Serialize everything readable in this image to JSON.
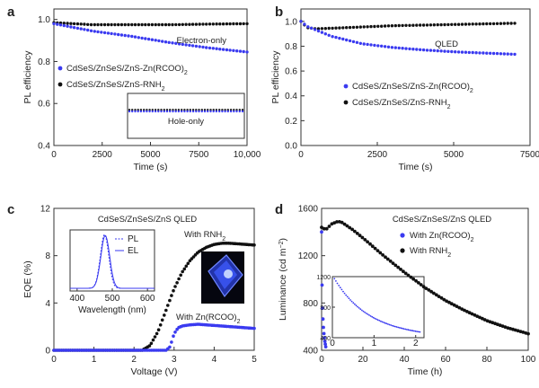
{
  "chart_data": [
    {
      "panel": "a",
      "type": "scatter",
      "xlabel": "Time (s)",
      "ylabel": "PL efficiency",
      "xlim": [
        0,
        10000
      ],
      "ylim": [
        0.4,
        1.05
      ],
      "xticks": [
        "0",
        "2500",
        "5000",
        "7500",
        "10,000"
      ],
      "yticks": [
        "0.4",
        "0.6",
        "0.8",
        "1.0"
      ],
      "annotations": [
        "Electron-only",
        "Hole-only"
      ],
      "legend_position": "middle-left",
      "series": [
        {
          "name": "CdSeS/ZnSeS/ZnS-Zn(RCOO)2",
          "color": "#3a3af0",
          "x": [
            0,
            2000,
            4000,
            6000,
            8000,
            10000
          ],
          "y": [
            0.98,
            0.945,
            0.92,
            0.89,
            0.865,
            0.845
          ]
        },
        {
          "name": "CdSeS/ZnSeS/ZnS-RNH2",
          "color": "#111111",
          "x": [
            0,
            2000,
            4000,
            6000,
            8000,
            10000
          ],
          "y": [
            0.985,
            0.975,
            0.975,
            0.975,
            0.978,
            0.98
          ]
        }
      ],
      "inset": {
        "label": "Hole-only",
        "series": [
          {
            "name": "CdSeS/ZnSeS/ZnS-Zn(RCOO)2",
            "color": "#3a3af0",
            "y": [
              0.99,
              0.99
            ]
          },
          {
            "name": "CdSeS/ZnSeS/ZnS-RNH2",
            "color": "#111111",
            "y": [
              0.995,
              0.995
            ]
          }
        ]
      }
    },
    {
      "panel": "b",
      "type": "scatter",
      "xlabel": "Time (s)",
      "ylabel": "PL efficiency",
      "xlim": [
        0,
        7500
      ],
      "ylim": [
        0,
        1.1
      ],
      "xticks": [
        "0",
        "2500",
        "5000",
        "7500"
      ],
      "yticks": [
        "0.0",
        "0.2",
        "0.4",
        "0.6",
        "0.8",
        "1.0"
      ],
      "annotations": [
        "QLED"
      ],
      "legend_position": "lower-left",
      "series": [
        {
          "name": "CdSeS/ZnSeS/ZnS-Zn(RCOO)2",
          "color": "#3a3af0",
          "x": [
            0,
            200,
            500,
            1000,
            2000,
            3000,
            4000,
            5000,
            6000,
            7000
          ],
          "y": [
            1.0,
            0.96,
            0.93,
            0.88,
            0.82,
            0.79,
            0.77,
            0.755,
            0.745,
            0.735
          ]
        },
        {
          "name": "CdSeS/ZnSeS/ZnS-RNH2",
          "color": "#111111",
          "x": [
            0,
            200,
            500,
            1000,
            2000,
            3000,
            4000,
            5000,
            6000,
            7000
          ],
          "y": [
            1.0,
            0.95,
            0.94,
            0.945,
            0.955,
            0.965,
            0.97,
            0.975,
            0.98,
            0.985
          ]
        }
      ]
    },
    {
      "panel": "c",
      "type": "line",
      "title": "CdSeS/ZnSeS/ZnS QLED",
      "xlabel": "Voltage (V)",
      "ylabel": "EQE (%)",
      "xlim": [
        0,
        5
      ],
      "ylim": [
        0,
        12
      ],
      "xticks": [
        "0",
        "1",
        "2",
        "3",
        "4",
        "5"
      ],
      "yticks": [
        "0",
        "4",
        "8",
        "12"
      ],
      "series": [
        {
          "name": "With RNH2",
          "label": "With RNH",
          "label_sub": "2",
          "color": "#111111",
          "x": [
            0,
            2.2,
            2.4,
            2.6,
            2.8,
            3.0,
            3.2,
            3.4,
            3.6,
            3.8,
            4.0,
            4.2,
            4.4,
            4.6,
            4.8,
            5.0
          ],
          "y": [
            0,
            0,
            0.4,
            1.6,
            3.4,
            5.2,
            6.6,
            7.6,
            8.3,
            8.7,
            8.95,
            9.05,
            9.05,
            9.0,
            8.95,
            8.9
          ]
        },
        {
          "name": "With Zn(RCOO)2",
          "label": "With Zn(RCOO)",
          "label_sub": "2",
          "color": "#3a3af0",
          "x": [
            0,
            2.8,
            2.9,
            3.0,
            3.1,
            3.2,
            3.4,
            3.6,
            3.8,
            4.0,
            4.2,
            4.4,
            4.6,
            4.8,
            5.0
          ],
          "y": [
            0,
            0,
            0.3,
            1.4,
            1.9,
            2.05,
            2.15,
            2.2,
            2.15,
            2.1,
            2.05,
            2.0,
            1.95,
            1.9,
            1.85
          ]
        }
      ],
      "inset": {
        "xlabel": "Wavelength (nm)",
        "xlim": [
          380,
          620
        ],
        "xticks": [
          "400",
          "500",
          "600"
        ],
        "legend": [
          "PL",
          "EL"
        ],
        "peak_nm": 478,
        "fwhm_nm": 28
      }
    },
    {
      "panel": "d",
      "type": "scatter",
      "title": "CdSeS/ZnSeS/ZnS QLED",
      "xlabel": "Time (h)",
      "ylabel": "Luminance (cd m",
      "ylabel_sup": "−2",
      "ylabel_end": ")",
      "xlim": [
        0,
        100
      ],
      "ylim": [
        400,
        1600
      ],
      "xticks": [
        "0",
        "20",
        "40",
        "60",
        "80",
        "100"
      ],
      "yticks": [
        "400",
        "800",
        "1200",
        "1600"
      ],
      "series": [
        {
          "name": "With Zn(RCOO)2",
          "label": "With Zn(RCOO)",
          "label_sub": "2",
          "color": "#3a3af0",
          "x": [
            0,
            0.1,
            0.2,
            0.3,
            0.5,
            0.8,
            1.0,
            1.3,
            1.6,
            2.0
          ],
          "y": [
            1400,
            1150,
            980,
            850,
            720,
            620,
            560,
            510,
            470,
            430
          ]
        },
        {
          "name": "With RNH2",
          "label": "With RNH",
          "label_sub": "2",
          "color": "#111111",
          "x": [
            0,
            2,
            5,
            8,
            10,
            15,
            20,
            30,
            40,
            50,
            60,
            70,
            80,
            90,
            100
          ],
          "y": [
            1440,
            1420,
            1470,
            1490,
            1480,
            1420,
            1350,
            1200,
            1060,
            930,
            820,
            730,
            650,
            590,
            540
          ]
        }
      ],
      "inset": {
        "xlim": [
          0,
          2.2
        ],
        "ylim": [
          400,
          1200
        ],
        "xticks": [
          "0",
          "1",
          "2"
        ],
        "yticks": [
          "400",
          "800",
          "1200"
        ]
      }
    }
  ]
}
